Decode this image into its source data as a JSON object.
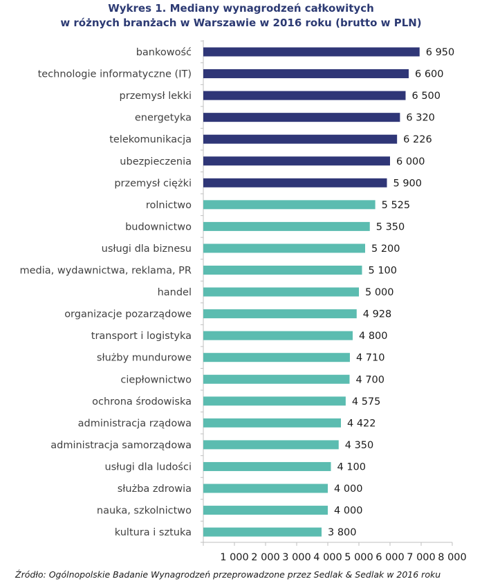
{
  "title_line1": "Wykres 1. Mediany wynagrodzeń całkowitych",
  "title_line2": "w różnych branżach w Warszawie w 2016 roku (brutto w PLN)",
  "source": "Źródło: Ogólnopolskie Badanie Wynagrodzeń przeprowadzone przez Sedlak & Sedlak w 2016 roku",
  "colors": {
    "top": "#2f3677",
    "rest": "#5bbcb0",
    "title": "#2c3a73"
  },
  "chart_data": {
    "type": "bar",
    "orientation": "horizontal",
    "title": "Wykres 1. Mediany wynagrodzeń całkowitych w różnych branżach w Warszawie w 2016 roku (brutto w PLN)",
    "xlabel": "",
    "ylabel": "",
    "xlim": [
      0,
      8000
    ],
    "xticks": [
      "",
      "1 000",
      "2 000",
      "3 000",
      "4 000",
      "5 000",
      "6 000",
      "7 000",
      "8 000"
    ],
    "grid": false,
    "categories": [
      "bankowość",
      "technologie informatyczne (IT)",
      "przemysł lekki",
      "energetyka",
      "telekomunikacja",
      "ubezpieczenia",
      "przemysł ciężki",
      "rolnictwo",
      "budownictwo",
      "usługi dla biznesu",
      "media, wydawnictwa, reklama, PR",
      "handel",
      "organizacje pozarządowe",
      "transport i logistyka",
      "służby mundurowe",
      "ciepłownictwo",
      "ochrona środowiska",
      "administracja rządowa",
      "administracja samorządowa",
      "usługi dla ludości",
      "służba zdrowia",
      "nauka, szkolnictwo",
      "kultura i sztuka"
    ],
    "values": [
      6950,
      6600,
      6500,
      6320,
      6226,
      6000,
      5900,
      5525,
      5350,
      5200,
      5100,
      5000,
      4928,
      4800,
      4710,
      4700,
      4575,
      4422,
      4350,
      4100,
      4000,
      4000,
      3800
    ],
    "value_labels": [
      "6 950",
      "6 600",
      "6 500",
      "6 320",
      "6 226",
      "6 000",
      "5 900",
      "5 525",
      "5 350",
      "5 200",
      "5 100",
      "5 000",
      "4 928",
      "4 800",
      "4 710",
      "4 700",
      "4 575",
      "4 422",
      "4 350",
      "4 100",
      "4 000",
      "4 000",
      "3 800"
    ],
    "bar_colors": [
      "#2f3677",
      "#2f3677",
      "#2f3677",
      "#2f3677",
      "#2f3677",
      "#2f3677",
      "#2f3677",
      "#5bbcb0",
      "#5bbcb0",
      "#5bbcb0",
      "#5bbcb0",
      "#5bbcb0",
      "#5bbcb0",
      "#5bbcb0",
      "#5bbcb0",
      "#5bbcb0",
      "#5bbcb0",
      "#5bbcb0",
      "#5bbcb0",
      "#5bbcb0",
      "#5bbcb0",
      "#5bbcb0",
      "#5bbcb0"
    ]
  }
}
